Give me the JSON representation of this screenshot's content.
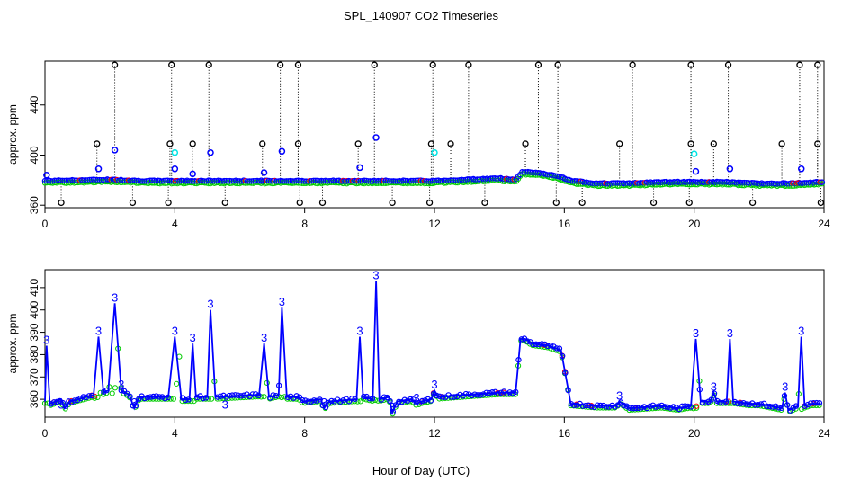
{
  "figure": {
    "title": "SPL_140907  CO2 Timeseries",
    "xlabel": "Hour of Day (UTC)"
  },
  "chart_data": [
    {
      "type": "scatter",
      "ylabel": "approx. ppm",
      "xlim": [
        0,
        24
      ],
      "ylim": [
        358,
        475
      ],
      "xticks": [
        0,
        4,
        8,
        12,
        16,
        20,
        24
      ],
      "yticks": [
        360,
        400,
        440
      ],
      "colors": {
        "black": "#000000",
        "blue": "#0000ff",
        "cyan": "#00e5e5",
        "green": "#00cc00",
        "red": "#ff0000"
      },
      "baseline": [
        [
          0,
          379
        ],
        [
          2,
          380
        ],
        [
          3,
          379
        ],
        [
          4,
          379
        ],
        [
          6,
          379
        ],
        [
          8,
          379
        ],
        [
          10,
          379
        ],
        [
          12,
          379
        ],
        [
          13,
          380
        ],
        [
          14,
          381
        ],
        [
          14.5,
          380
        ],
        [
          14.7,
          386
        ],
        [
          15,
          386
        ],
        [
          15.5,
          384
        ],
        [
          15.9,
          382
        ],
        [
          16.2,
          379
        ],
        [
          17,
          377
        ],
        [
          18,
          377
        ],
        [
          19,
          378
        ],
        [
          20,
          378
        ],
        [
          21,
          378
        ],
        [
          22,
          377
        ],
        [
          23,
          377
        ],
        [
          23.9,
          378
        ]
      ],
      "spike_times_high": [
        2.15,
        3.9,
        5.05,
        7.25,
        7.8,
        10.15,
        11.95,
        13.05,
        15.2,
        15.8,
        18.1,
        19.9,
        21.05,
        23.25,
        23.8
      ],
      "spike_times_mid": [
        1.6,
        3.85,
        4.55,
        6.7,
        7.8,
        9.65,
        11.9,
        12.5,
        14.8,
        17.7,
        19.9,
        20.6,
        22.7,
        23.8
      ],
      "spike_times_low": [
        0.5,
        2.7,
        3.8,
        5.55,
        7.85,
        8.55,
        10.7,
        11.85,
        13.55,
        15.75,
        16.55,
        18.75,
        19.85,
        21.8,
        23.9
      ],
      "blue_outliers": [
        [
          0.05,
          384
        ],
        [
          1.65,
          389
        ],
        [
          2.15,
          404
        ],
        [
          4.0,
          389
        ],
        [
          4.55,
          385
        ],
        [
          5.1,
          402
        ],
        [
          6.75,
          386
        ],
        [
          7.3,
          403
        ],
        [
          9.7,
          390
        ],
        [
          10.2,
          414
        ],
        [
          20.05,
          387
        ],
        [
          21.1,
          389
        ],
        [
          23.3,
          389
        ]
      ],
      "cyan_outliers": [
        [
          4.0,
          402
        ],
        [
          12.0,
          402
        ],
        [
          20.0,
          401
        ]
      ]
    },
    {
      "type": "line",
      "ylabel": "approx. ppm",
      "xlim": [
        0,
        24
      ],
      "ylim": [
        352,
        418
      ],
      "xticks": [
        0,
        4,
        8,
        12,
        16,
        20,
        24
      ],
      "yticks": [
        360,
        370,
        380,
        390,
        400,
        410
      ],
      "marker_label": "3",
      "colors": {
        "line": "#0000ff",
        "green": "#00cc00",
        "red": "#ff0000",
        "cyan": "#00cccc"
      },
      "series": [
        {
          "values": [
            [
              0,
              359
            ],
            [
              0.05,
              384
            ],
            [
              0.15,
              358
            ],
            [
              0.5,
              360
            ],
            [
              0.6,
              356
            ],
            [
              0.75,
              359
            ],
            [
              1.5,
              362
            ],
            [
              1.65,
              388
            ],
            [
              1.8,
              363
            ],
            [
              1.95,
              364
            ],
            [
              2.15,
              403
            ],
            [
              2.35,
              364
            ],
            [
              2.6,
              362
            ],
            [
              2.75,
              356
            ],
            [
              2.9,
              361
            ],
            [
              3.8,
              361
            ],
            [
              4.0,
              388
            ],
            [
              4.2,
              360
            ],
            [
              4.45,
              360
            ],
            [
              4.55,
              385
            ],
            [
              4.65,
              361
            ],
            [
              5.0,
              361
            ],
            [
              5.1,
              400
            ],
            [
              5.25,
              361
            ],
            [
              6.6,
              362
            ],
            [
              6.75,
              385
            ],
            [
              6.9,
              361
            ],
            [
              7.2,
              362
            ],
            [
              7.3,
              401
            ],
            [
              7.45,
              361
            ],
            [
              7.8,
              361
            ],
            [
              7.95,
              359
            ],
            [
              8.5,
              360
            ],
            [
              8.6,
              356
            ],
            [
              8.75,
              359
            ],
            [
              9.6,
              360
            ],
            [
              9.7,
              388
            ],
            [
              9.8,
              361
            ],
            [
              10.1,
              360
            ],
            [
              10.2,
              413
            ],
            [
              10.3,
              360
            ],
            [
              10.6,
              361
            ],
            [
              10.7,
              354
            ],
            [
              10.85,
              359
            ],
            [
              11.3,
              360
            ],
            [
              11.45,
              358
            ],
            [
              11.6,
              359
            ],
            [
              11.9,
              360
            ],
            [
              12.0,
              364
            ],
            [
              12.1,
              361
            ],
            [
              13.0,
              362
            ],
            [
              14.0,
              363
            ],
            [
              14.5,
              363
            ],
            [
              14.65,
              387
            ],
            [
              14.8,
              387
            ],
            [
              15.0,
              385
            ],
            [
              15.5,
              384
            ],
            [
              15.9,
              382
            ],
            [
              16.2,
              358
            ],
            [
              17,
              357
            ],
            [
              17.6,
              357
            ],
            [
              17.7,
              359
            ],
            [
              18,
              356
            ],
            [
              19,
              357
            ],
            [
              19.5,
              356
            ],
            [
              19.9,
              357
            ],
            [
              20.05,
              387
            ],
            [
              20.2,
              359
            ],
            [
              20.5,
              359
            ],
            [
              20.6,
              363
            ],
            [
              20.7,
              359
            ],
            [
              21.0,
              359
            ],
            [
              21.1,
              387
            ],
            [
              21.2,
              359
            ],
            [
              21.7,
              358
            ],
            [
              22,
              358
            ],
            [
              22.7,
              356
            ],
            [
              22.8,
              363
            ],
            [
              22.9,
              355
            ],
            [
              23.2,
              357
            ],
            [
              23.3,
              388
            ],
            [
              23.4,
              357
            ],
            [
              23.6,
              358
            ],
            [
              23.9,
              358
            ]
          ]
        }
      ],
      "marker_labels": [
        [
          0.05,
          384
        ],
        [
          0.5,
          355
        ],
        [
          1.65,
          388
        ],
        [
          2.15,
          403
        ],
        [
          2.35,
          364
        ],
        [
          2.75,
          356
        ],
        [
          4.0,
          388
        ],
        [
          4.55,
          385
        ],
        [
          5.1,
          400
        ],
        [
          5.55,
          355
        ],
        [
          6.75,
          385
        ],
        [
          7.3,
          401
        ],
        [
          8.6,
          356
        ],
        [
          9.7,
          388
        ],
        [
          10.2,
          413
        ],
        [
          10.7,
          354
        ],
        [
          11.45,
          358
        ],
        [
          12.0,
          364
        ],
        [
          17.7,
          359
        ],
        [
          20.05,
          387
        ],
        [
          20.6,
          363
        ],
        [
          21.1,
          387
        ],
        [
          22.8,
          363
        ],
        [
          23.3,
          388
        ]
      ]
    }
  ]
}
